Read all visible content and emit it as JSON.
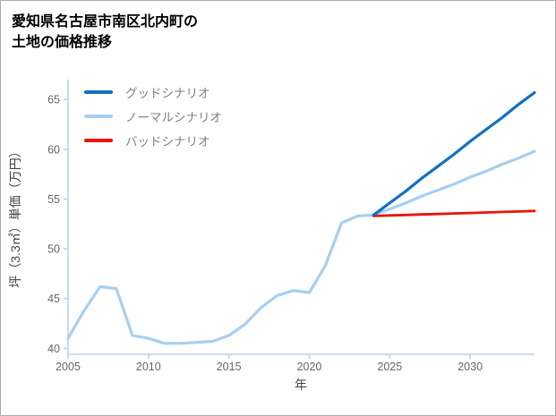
{
  "header": {
    "title_line1": "愛知県名古屋市南区北内町の",
    "title_line2": "土地の価格推移"
  },
  "chart_data": {
    "type": "line",
    "title": "愛知県名古屋市南区北内町の土地の価格推移",
    "xlabel": "年",
    "ylabel": "坪（3.3㎡）単価（万円）",
    "xlim": [
      2005,
      2034
    ],
    "ylim": [
      39.4,
      67.0
    ],
    "xticks": [
      2005,
      2010,
      2015,
      2020,
      2025,
      2030
    ],
    "yticks": [
      40,
      45,
      50,
      55,
      60,
      65
    ],
    "grid": false,
    "legend_position": "top-left",
    "axis_color": "#bcd4ea",
    "tick_color": "#666666",
    "label_color": "#444444",
    "series": [
      {
        "name": "グッドシナリオ",
        "color": "#1170c0",
        "width": 3.2,
        "z": 3,
        "x": [
          2024,
          2025,
          2026,
          2027,
          2028,
          2029,
          2030,
          2031,
          2032,
          2033,
          2034
        ],
        "y": [
          53.4,
          54.6,
          55.8,
          57.1,
          58.3,
          59.5,
          60.8,
          62.0,
          63.2,
          64.5,
          65.7
        ]
      },
      {
        "name": "ノーマルシナリオ",
        "color": "#a6cff2",
        "width": 3.2,
        "z": 1,
        "x": [
          2005,
          2006,
          2007,
          2008,
          2009,
          2010,
          2011,
          2012,
          2013,
          2014,
          2015,
          2016,
          2017,
          2018,
          2019,
          2020,
          2021,
          2022,
          2023,
          2024,
          2025,
          2026,
          2027,
          2028,
          2029,
          2030,
          2031,
          2032,
          2033,
          2034
        ],
        "y": [
          41.0,
          43.8,
          46.2,
          46.0,
          41.3,
          41.0,
          40.5,
          40.5,
          40.6,
          40.7,
          41.3,
          42.4,
          44.1,
          45.3,
          45.8,
          45.6,
          48.3,
          52.6,
          53.3,
          53.4,
          54.0,
          54.6,
          55.3,
          55.9,
          56.5,
          57.2,
          57.8,
          58.5,
          59.1,
          59.8
        ]
      },
      {
        "name": "バッドシナリオ",
        "color": "#e8160c",
        "width": 2.8,
        "z": 2,
        "x": [
          2024,
          2025,
          2026,
          2027,
          2028,
          2029,
          2030,
          2031,
          2032,
          2033,
          2034
        ],
        "y": [
          53.3,
          53.35,
          53.4,
          53.45,
          53.5,
          53.55,
          53.6,
          53.65,
          53.7,
          53.75,
          53.8
        ]
      }
    ]
  }
}
